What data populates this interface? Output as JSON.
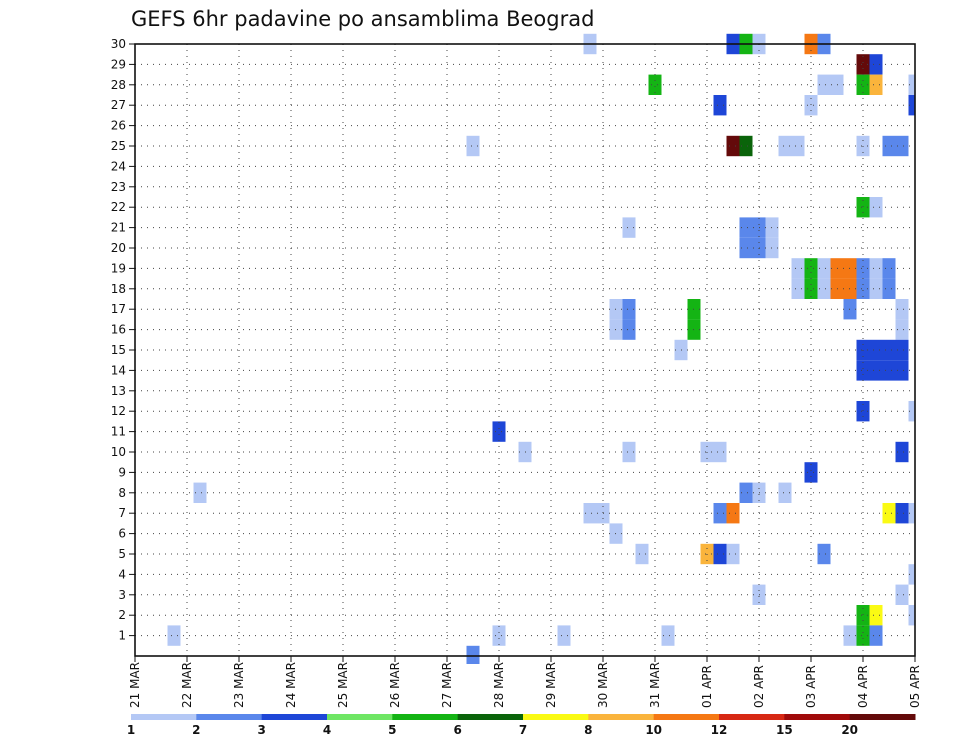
{
  "chart_data": {
    "type": "heatmap",
    "title": "GEFS 6hr padavine po ansamblima Beograd",
    "xlabel": "",
    "ylabel": "",
    "grid": true,
    "x_tick_labels": [
      "21 MAR",
      "22 MAR",
      "23 MAR",
      "24 MAR",
      "25 MAR",
      "26 MAR",
      "27 MAR",
      "28 MAR",
      "29 MAR",
      "30 MAR",
      "31 MAR",
      "01 APR",
      "02 APR",
      "03 APR",
      "04 APR",
      "05 APR"
    ],
    "x_range_days": [
      0,
      15
    ],
    "y_tick_labels": [
      "1",
      "2",
      "3",
      "4",
      "5",
      "6",
      "7",
      "8",
      "9",
      "10",
      "11",
      "12",
      "13",
      "14",
      "15",
      "16",
      "17",
      "18",
      "19",
      "20",
      "21",
      "22",
      "23",
      "24",
      "25",
      "26",
      "27",
      "28",
      "29",
      "30"
    ],
    "y_range": [
      0,
      30
    ],
    "legend_position": "bottom",
    "colorbar": {
      "labels": [
        "1",
        "2",
        "3",
        "4",
        "5",
        "6",
        "7",
        "8",
        "10",
        "12",
        "15",
        "20"
      ],
      "colors": [
        "#b4c8f5",
        "#5a87eb",
        "#1e46d7",
        "#6ee664",
        "#14b414",
        "#0a640a",
        "#fafa14",
        "#fab43c",
        "#f57814",
        "#d72814",
        "#a00a0a",
        "#640a0a"
      ]
    },
    "cells": [
      [
        30,
        8.75,
        1
      ],
      [
        30,
        11.5,
        3
      ],
      [
        30,
        11.75,
        5
      ],
      [
        30,
        12.0,
        1
      ],
      [
        30,
        13.0,
        10
      ],
      [
        30,
        13.25,
        2
      ],
      [
        29,
        14.0,
        20
      ],
      [
        29,
        14.25,
        3
      ],
      [
        28,
        10.0,
        5
      ],
      [
        28,
        13.25,
        1
      ],
      [
        28,
        13.5,
        1
      ],
      [
        28,
        14.0,
        5
      ],
      [
        28,
        14.25,
        8
      ],
      [
        28,
        15.0,
        1
      ],
      [
        27,
        11.25,
        3
      ],
      [
        27,
        13.0,
        1
      ],
      [
        27,
        15.0,
        3
      ],
      [
        25,
        6.5,
        1
      ],
      [
        25,
        11.5,
        20
      ],
      [
        25,
        11.75,
        6
      ],
      [
        25,
        12.5,
        1
      ],
      [
        25,
        12.75,
        1
      ],
      [
        25,
        14.0,
        1
      ],
      [
        25,
        14.5,
        2
      ],
      [
        25,
        14.75,
        2
      ],
      [
        22,
        14.0,
        5
      ],
      [
        22,
        14.25,
        1
      ],
      [
        21,
        9.5,
        1
      ],
      [
        21,
        11.75,
        2
      ],
      [
        21,
        12.0,
        2
      ],
      [
        21,
        12.25,
        1
      ],
      [
        20,
        11.75,
        2
      ],
      [
        20,
        12.0,
        2
      ],
      [
        20,
        12.25,
        1
      ],
      [
        19,
        12.75,
        1
      ],
      [
        19,
        13.0,
        5
      ],
      [
        19,
        13.25,
        1
      ],
      [
        19,
        13.5,
        10
      ],
      [
        19,
        13.75,
        10
      ],
      [
        19,
        14.0,
        2
      ],
      [
        19,
        14.25,
        1
      ],
      [
        19,
        14.5,
        2
      ],
      [
        18,
        12.75,
        1
      ],
      [
        18,
        13.0,
        5
      ],
      [
        18,
        13.25,
        1
      ],
      [
        18,
        13.5,
        10
      ],
      [
        18,
        13.75,
        10
      ],
      [
        18,
        14.0,
        2
      ],
      [
        18,
        14.25,
        1
      ],
      [
        18,
        14.5,
        2
      ],
      [
        17,
        13.75,
        2
      ],
      [
        17,
        10.75,
        5
      ],
      [
        17,
        9.25,
        1
      ],
      [
        17,
        9.5,
        2
      ],
      [
        17,
        14.75,
        1
      ],
      [
        16,
        9.25,
        1
      ],
      [
        16,
        9.5,
        2
      ],
      [
        16,
        10.75,
        5
      ],
      [
        16,
        14.75,
        1
      ],
      [
        15,
        10.5,
        1
      ],
      [
        15,
        14.0,
        3
      ],
      [
        15,
        14.25,
        3
      ],
      [
        15,
        14.5,
        3
      ],
      [
        15,
        14.75,
        3
      ],
      [
        14,
        14.0,
        3
      ],
      [
        14,
        14.25,
        3
      ],
      [
        14,
        14.5,
        3
      ],
      [
        14,
        14.75,
        3
      ],
      [
        12,
        14.0,
        3
      ],
      [
        12,
        15.0,
        1
      ],
      [
        11,
        7.0,
        3
      ],
      [
        10,
        7.5,
        1
      ],
      [
        10,
        9.5,
        1
      ],
      [
        10,
        11.0,
        1
      ],
      [
        10,
        11.25,
        1
      ],
      [
        10,
        14.75,
        3
      ],
      [
        9,
        13.0,
        3
      ],
      [
        8,
        1.25,
        1
      ],
      [
        8,
        11.75,
        2
      ],
      [
        8,
        12.0,
        1
      ],
      [
        8,
        12.5,
        1
      ],
      [
        7,
        8.75,
        1
      ],
      [
        7,
        9.0,
        1
      ],
      [
        7,
        11.25,
        2
      ],
      [
        7,
        11.5,
        10
      ],
      [
        7,
        14.5,
        7
      ],
      [
        7,
        14.75,
        3
      ],
      [
        7,
        15.0,
        1
      ],
      [
        6,
        9.25,
        1
      ],
      [
        5,
        9.75,
        1
      ],
      [
        5,
        11.0,
        8
      ],
      [
        5,
        11.25,
        3
      ],
      [
        5,
        11.5,
        1
      ],
      [
        5,
        13.25,
        2
      ],
      [
        4,
        15.0,
        1
      ],
      [
        3,
        12.0,
        1
      ],
      [
        3,
        14.75,
        1
      ],
      [
        2,
        14.0,
        5
      ],
      [
        2,
        14.25,
        7
      ],
      [
        2,
        15.0,
        1
      ],
      [
        1,
        0.75,
        1
      ],
      [
        1,
        7.0,
        1
      ],
      [
        1,
        8.25,
        1
      ],
      [
        1,
        10.25,
        1
      ],
      [
        1,
        13.75,
        1
      ],
      [
        1,
        14.0,
        5
      ],
      [
        1,
        14.25,
        2
      ],
      [
        0,
        6.5,
        2
      ]
    ]
  }
}
